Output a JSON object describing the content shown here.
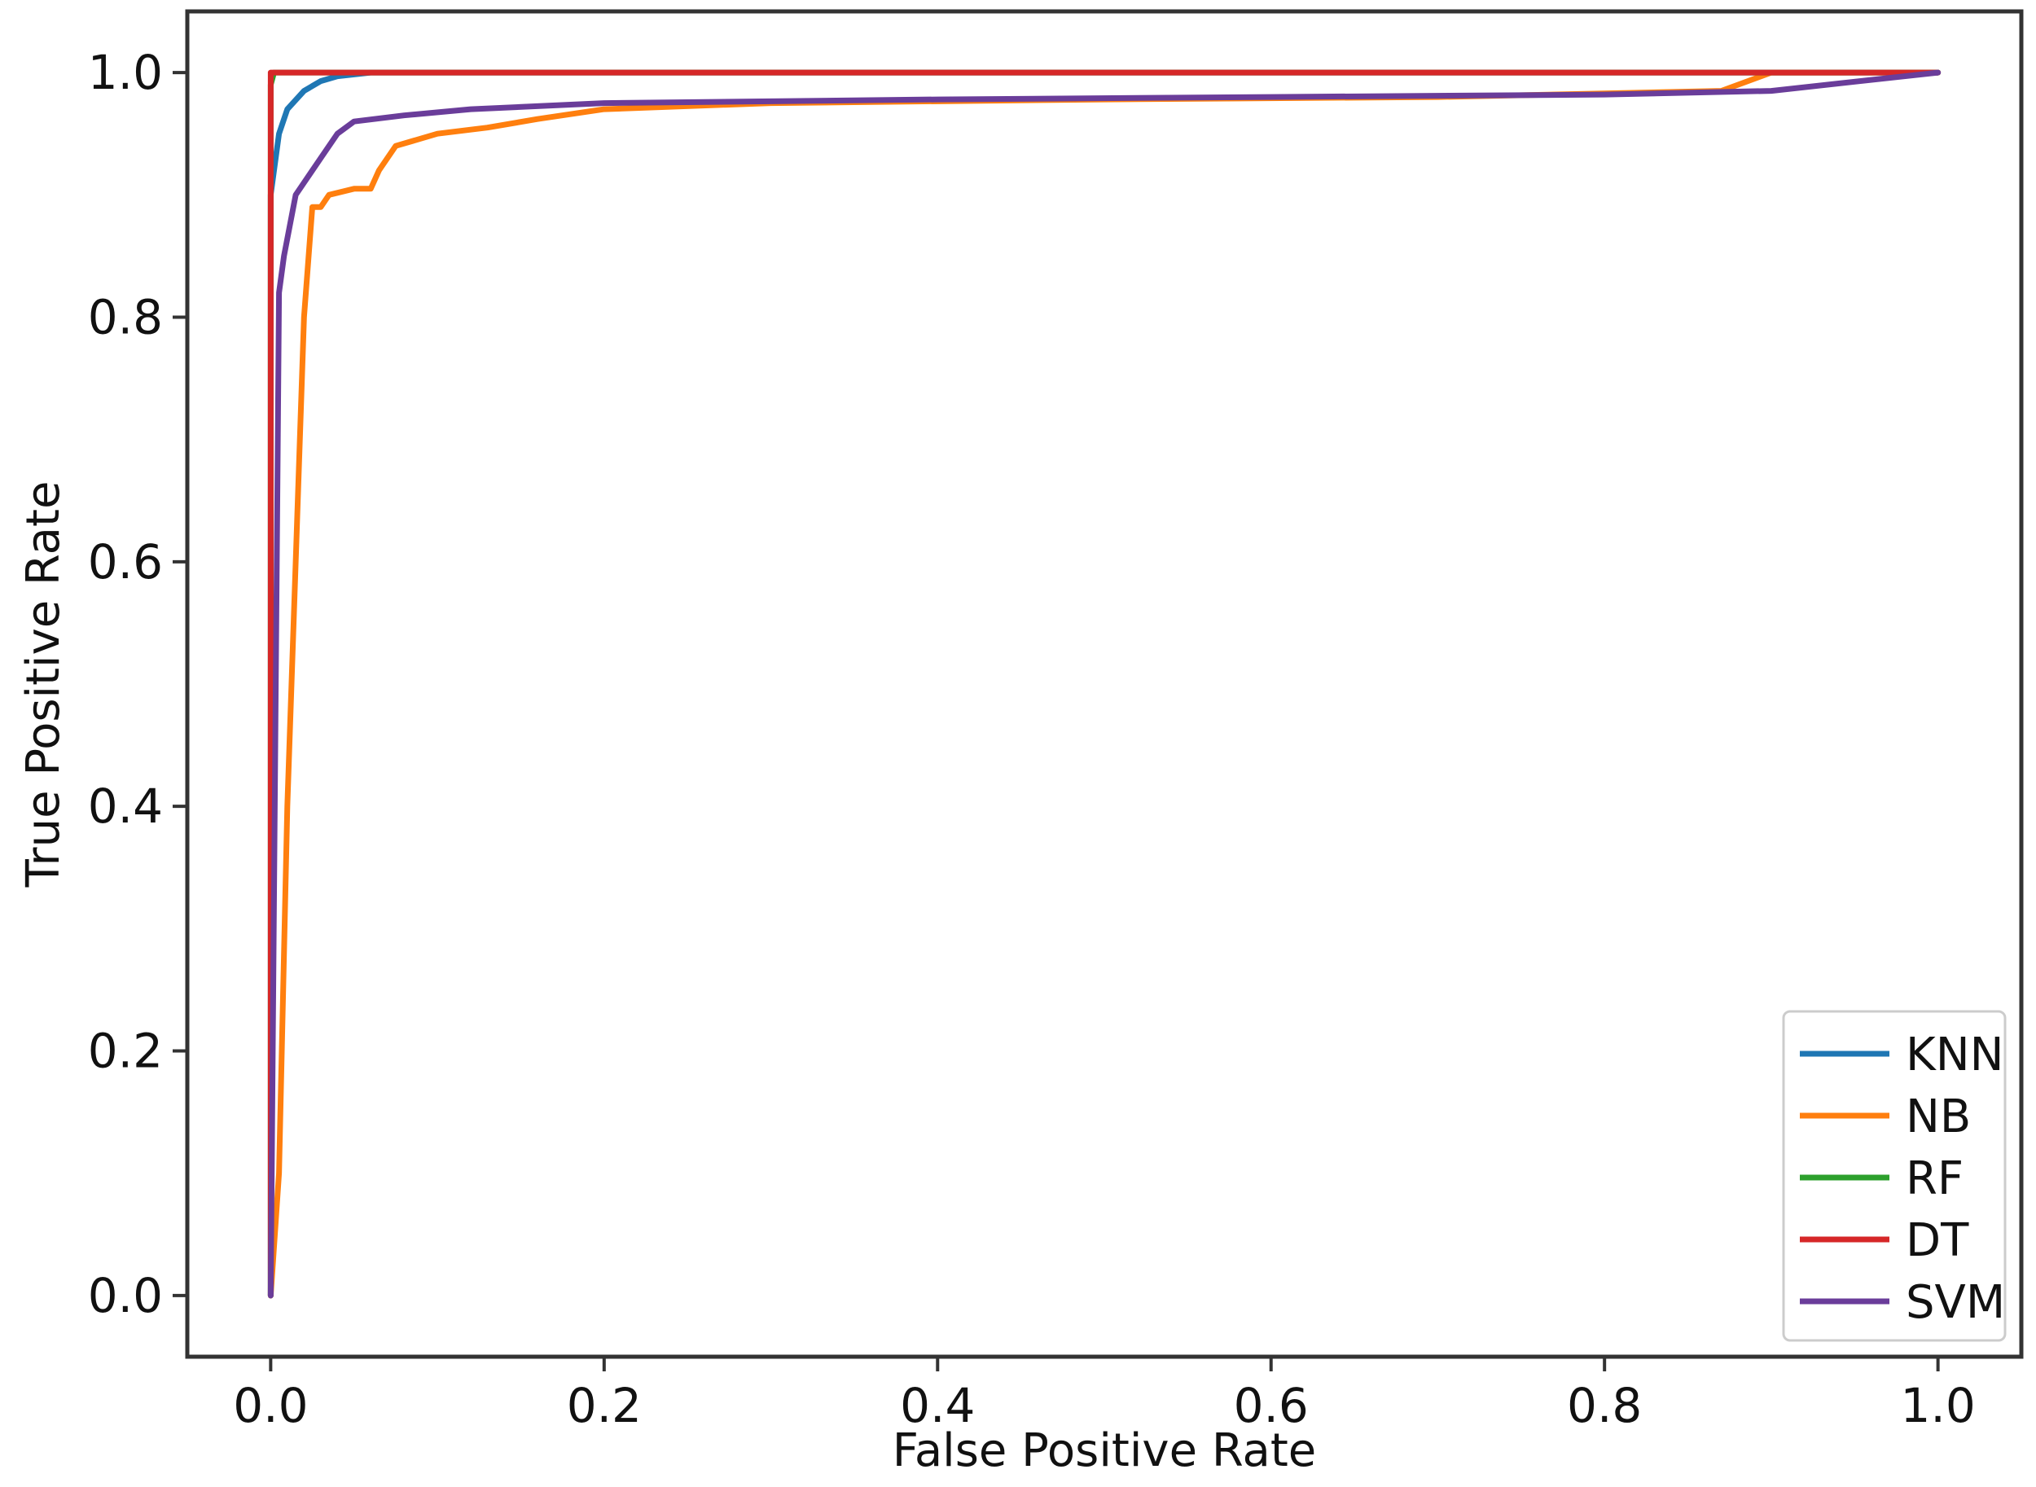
{
  "chart_data": {
    "type": "line",
    "title": "",
    "xlabel": "False Positive Rate",
    "ylabel": "True Positive Rate",
    "xlim": [
      -0.05,
      1.05
    ],
    "ylim": [
      -0.05,
      1.05
    ],
    "xticks": [
      "0.0",
      "0.2",
      "0.4",
      "0.6",
      "0.8",
      "1.0"
    ],
    "yticks": [
      "0.0",
      "0.2",
      "0.4",
      "0.6",
      "0.8",
      "1.0"
    ],
    "grid": false,
    "legend_position": "bottom-right",
    "series": [
      {
        "name": "KNN",
        "color": "#1f77b4",
        "x": [
          0.0,
          0.0,
          0.005,
          0.01,
          0.02,
          0.03,
          0.04,
          0.06,
          1.0
        ],
        "y": [
          0.0,
          0.9,
          0.95,
          0.97,
          0.985,
          0.993,
          0.997,
          1.0,
          1.0
        ]
      },
      {
        "name": "NB",
        "color": "#ff7f0e",
        "x": [
          0.0,
          0.005,
          0.01,
          0.015,
          0.02,
          0.025,
          0.03,
          0.035,
          0.05,
          0.06,
          0.065,
          0.075,
          0.1,
          0.13,
          0.16,
          0.2,
          0.3,
          0.5,
          0.7,
          0.87,
          0.89,
          0.9,
          1.0
        ],
        "y": [
          0.0,
          0.1,
          0.4,
          0.6,
          0.8,
          0.89,
          0.89,
          0.9,
          0.905,
          0.905,
          0.92,
          0.94,
          0.95,
          0.955,
          0.962,
          0.97,
          0.975,
          0.978,
          0.98,
          0.985,
          0.995,
          1.0,
          1.0
        ]
      },
      {
        "name": "RF",
        "color": "#2ca02c",
        "x": [
          0.0,
          0.0,
          0.002,
          1.0
        ],
        "y": [
          0.0,
          0.99,
          1.0,
          1.0
        ]
      },
      {
        "name": "DT",
        "color": "#d62728",
        "x": [
          0.0,
          0.0,
          1.0
        ],
        "y": [
          0.0,
          1.0,
          1.0
        ]
      },
      {
        "name": "SVM",
        "color": "#6a3d9a",
        "x": [
          0.0,
          0.005,
          0.008,
          0.015,
          0.02,
          0.03,
          0.04,
          0.05,
          0.08,
          0.12,
          0.2,
          0.4,
          0.6,
          0.8,
          0.9,
          1.0
        ],
        "y": [
          0.0,
          0.82,
          0.85,
          0.9,
          0.91,
          0.93,
          0.95,
          0.96,
          0.965,
          0.97,
          0.975,
          0.978,
          0.98,
          0.982,
          0.985,
          1.0
        ]
      }
    ]
  }
}
